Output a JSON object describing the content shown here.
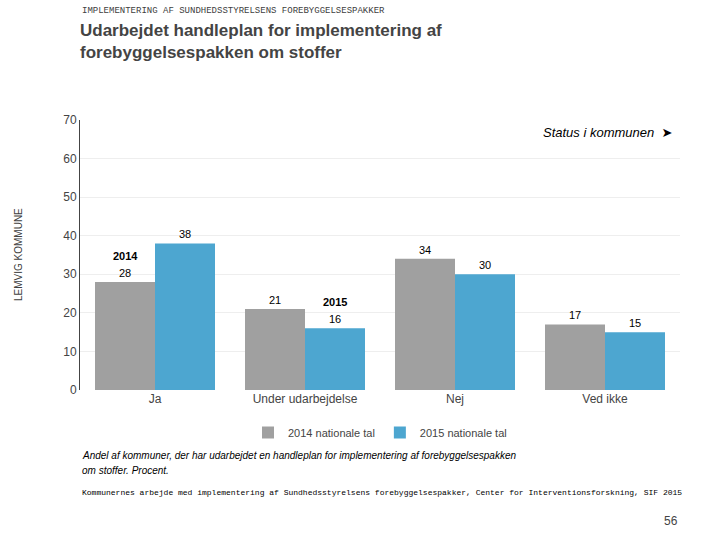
{
  "chart_data": {
    "type": "bar",
    "header": "IMPLEMENTERING AF SUNDHEDSSTYRELSENS FOREBYGGELSESPAKKER",
    "title": [
      "Udarbejdet handleplan for implementering af",
      "forebyggelsespakken om stoffer"
    ],
    "side_label": "LEMVIG KOMMUNE",
    "categories": [
      "Ja",
      "Under udarbejdelse",
      "Nej",
      "Ved ikke"
    ],
    "series": [
      {
        "name": "2014 nationale tal",
        "color": "#A0A0A0",
        "values": [
          28,
          21,
          34,
          17
        ]
      },
      {
        "name": "2015 nationale tal",
        "color": "#4DA6D0",
        "values": [
          38,
          16,
          30,
          15
        ]
      }
    ],
    "ylim": [
      0,
      70
    ],
    "yticks": [
      0,
      10,
      20,
      30,
      40,
      50,
      60,
      70
    ],
    "grid": true,
    "data_labels": true,
    "legend": "bottom",
    "annotations": [
      {
        "text": "Status i kommunen  ➤"
      },
      {
        "text": "2014",
        "category": "Ja",
        "series": "2014 nationale tal"
      },
      {
        "text": "2015",
        "category": "Under udarbejdelse",
        "series": "2015 nationale tal"
      }
    ],
    "footnotes": [
      "Andel af kommuner, der har udarbejdet en handleplan for implementering af forebyggelsespakken",
      "om stoffer. Procent."
    ],
    "source": "Kommunernes arbejde med implementering af Sundhedsstyrelsens forebyggelsespakker, Center for Interventionsforskning, SIF 2015",
    "page_number": "56"
  }
}
